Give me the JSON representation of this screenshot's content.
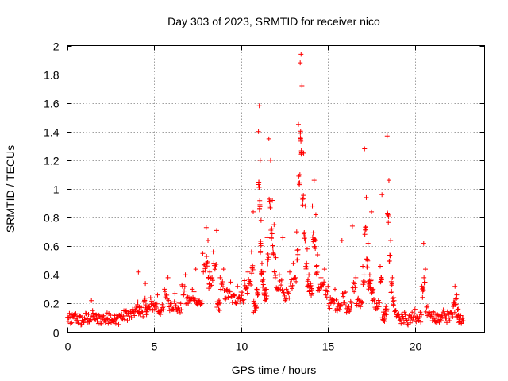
{
  "chart_data": {
    "type": "scatter",
    "title": "Day 303 of 2023, SRMTID for receiver nico",
    "xlabel": "GPS time / hours",
    "ylabel": "SRMTID / TECUs",
    "xlim": [
      0,
      24
    ],
    "ylim": [
      0,
      2
    ],
    "xticks": [
      0,
      5,
      10,
      15,
      20
    ],
    "yticks": [
      0,
      0.2,
      0.4,
      0.6,
      0.8,
      1,
      1.2,
      1.4,
      1.6,
      1.8,
      2
    ],
    "ytick_labels": [
      "0",
      "0.2",
      "0.4",
      "0.6",
      "0.8",
      "1",
      "1.2",
      "1.4",
      "1.6",
      "1.8",
      "2"
    ],
    "grid": true,
    "marker": "+",
    "series": [
      {
        "name": "SRMTID",
        "color": "#ff0000",
        "envelope_description": "approximate point cloud, mean value by hour",
        "points": [
          [
            0.0,
            0.1
          ],
          [
            0.2,
            0.06
          ],
          [
            0.4,
            0.12
          ],
          [
            0.6,
            0.08
          ],
          [
            0.8,
            0.05
          ],
          [
            1.0,
            0.1
          ],
          [
            1.2,
            0.07
          ],
          [
            1.4,
            0.22
          ],
          [
            1.6,
            0.09
          ],
          [
            1.8,
            0.06
          ],
          [
            2.0,
            0.11
          ],
          [
            2.2,
            0.07
          ],
          [
            2.4,
            0.13
          ],
          [
            2.6,
            0.08
          ],
          [
            2.8,
            0.06
          ],
          [
            3.0,
            0.12
          ],
          [
            3.2,
            0.09
          ],
          [
            3.4,
            0.15
          ],
          [
            3.6,
            0.1
          ],
          [
            3.8,
            0.13
          ],
          [
            4.0,
            0.18
          ],
          [
            4.1,
            0.42
          ],
          [
            4.2,
            0.14
          ],
          [
            4.4,
            0.21
          ],
          [
            4.5,
            0.34
          ],
          [
            4.6,
            0.16
          ],
          [
            4.8,
            0.24
          ],
          [
            5.0,
            0.19
          ],
          [
            5.2,
            0.26
          ],
          [
            5.4,
            0.15
          ],
          [
            5.6,
            0.3
          ],
          [
            5.8,
            0.38
          ],
          [
            6.0,
            0.2
          ],
          [
            6.2,
            0.27
          ],
          [
            6.4,
            0.17
          ],
          [
            6.6,
            0.33
          ],
          [
            6.8,
            0.4
          ],
          [
            7.0,
            0.24
          ],
          [
            7.2,
            0.3
          ],
          [
            7.4,
            0.44
          ],
          [
            7.6,
            0.22
          ],
          [
            7.8,
            0.55
          ],
          [
            8.0,
            0.73
          ],
          [
            8.1,
            0.64
          ],
          [
            8.2,
            0.42
          ],
          [
            8.4,
            0.56
          ],
          [
            8.6,
            0.71
          ],
          [
            8.7,
            0.2
          ],
          [
            8.8,
            0.38
          ],
          [
            9.0,
            0.44
          ],
          [
            9.2,
            0.3
          ],
          [
            9.4,
            0.35
          ],
          [
            9.6,
            0.26
          ],
          [
            9.8,
            0.32
          ],
          [
            10.0,
            0.28
          ],
          [
            10.2,
            0.36
          ],
          [
            10.4,
            0.42
          ],
          [
            10.6,
            0.56
          ],
          [
            10.7,
            0.84
          ],
          [
            10.8,
            0.18
          ],
          [
            10.9,
            0.3
          ],
          [
            11.0,
            1.4
          ],
          [
            11.05,
            1.58
          ],
          [
            11.1,
            1.2
          ],
          [
            11.15,
            0.78
          ],
          [
            11.2,
            0.48
          ],
          [
            11.3,
            0.42
          ],
          [
            11.4,
            0.3
          ],
          [
            11.5,
            0.66
          ],
          [
            11.6,
            1.35
          ],
          [
            11.7,
            1.2
          ],
          [
            11.8,
            0.92
          ],
          [
            11.9,
            0.75
          ],
          [
            12.0,
            0.52
          ],
          [
            12.2,
            0.4
          ],
          [
            12.4,
            0.66
          ],
          [
            12.6,
            0.3
          ],
          [
            12.8,
            0.42
          ],
          [
            13.0,
            0.48
          ],
          [
            13.2,
            0.7
          ],
          [
            13.3,
            1.45
          ],
          [
            13.4,
            1.88
          ],
          [
            13.45,
            1.94
          ],
          [
            13.5,
            1.72
          ],
          [
            13.6,
            1.25
          ],
          [
            13.7,
            0.88
          ],
          [
            13.8,
            0.58
          ],
          [
            13.9,
            0.4
          ],
          [
            14.0,
            0.34
          ],
          [
            14.1,
            0.88
          ],
          [
            14.2,
            1.06
          ],
          [
            14.3,
            0.82
          ],
          [
            14.4,
            0.54
          ],
          [
            14.6,
            0.38
          ],
          [
            14.8,
            0.44
          ],
          [
            15.0,
            0.32
          ],
          [
            15.2,
            0.22
          ],
          [
            15.4,
            0.3
          ],
          [
            15.6,
            0.2
          ],
          [
            15.8,
            0.64
          ],
          [
            16.0,
            0.28
          ],
          [
            16.2,
            0.18
          ],
          [
            16.4,
            0.74
          ],
          [
            16.6,
            0.38
          ],
          [
            16.8,
            0.22
          ],
          [
            17.0,
            0.46
          ],
          [
            17.1,
            1.28
          ],
          [
            17.2,
            0.94
          ],
          [
            17.3,
            0.62
          ],
          [
            17.4,
            0.4
          ],
          [
            17.5,
            0.84
          ],
          [
            17.6,
            0.3
          ],
          [
            17.8,
            0.2
          ],
          [
            18.0,
            0.46
          ],
          [
            18.1,
            0.96
          ],
          [
            18.2,
            0.08
          ],
          [
            18.3,
            0.16
          ],
          [
            18.4,
            1.37
          ],
          [
            18.5,
            1.06
          ],
          [
            18.6,
            0.64
          ],
          [
            18.7,
            0.38
          ],
          [
            18.8,
            0.22
          ],
          [
            19.0,
            0.12
          ],
          [
            19.2,
            0.06
          ],
          [
            19.4,
            0.14
          ],
          [
            19.6,
            0.05
          ],
          [
            19.8,
            0.1
          ],
          [
            20.0,
            0.16
          ],
          [
            20.2,
            0.08
          ],
          [
            20.4,
            0.32
          ],
          [
            20.5,
            0.62
          ],
          [
            20.6,
            0.44
          ],
          [
            20.8,
            0.14
          ],
          [
            21.0,
            0.08
          ],
          [
            21.2,
            0.12
          ],
          [
            21.4,
            0.07
          ],
          [
            21.6,
            0.14
          ],
          [
            21.8,
            0.1
          ],
          [
            22.0,
            0.08
          ],
          [
            22.2,
            0.18
          ],
          [
            22.3,
            0.32
          ],
          [
            22.4,
            0.26
          ],
          [
            22.5,
            0.12
          ],
          [
            22.6,
            0.07
          ],
          [
            22.8,
            0.1
          ]
        ]
      }
    ]
  }
}
